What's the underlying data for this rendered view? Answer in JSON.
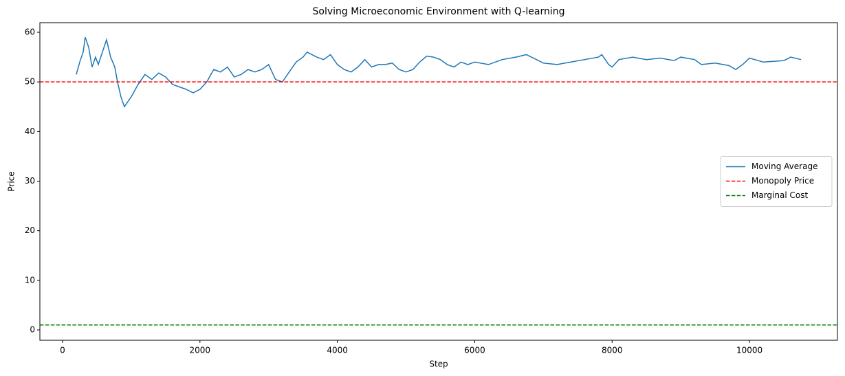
{
  "chart_data": {
    "type": "line",
    "title": "Solving Microeconomic Environment with Q-learning",
    "x_label": "Step",
    "y_label": "Price",
    "x": [
      200,
      250,
      300,
      330,
      380,
      430,
      480,
      520,
      580,
      640,
      700,
      760,
      800,
      850,
      900,
      950,
      1000,
      1100,
      1200,
      1300,
      1400,
      1500,
      1600,
      1700,
      1800,
      1900,
      2000,
      2100,
      2200,
      2300,
      2400,
      2500,
      2600,
      2700,
      2800,
      2900,
      3000,
      3100,
      3200,
      3300,
      3400,
      3500,
      3560,
      3700,
      3800,
      3900,
      4000,
      4100,
      4200,
      4300,
      4400,
      4500,
      4600,
      4700,
      4800,
      4900,
      5000,
      5100,
      5200,
      5300,
      5400,
      5500,
      5600,
      5700,
      5800,
      5900,
      6000,
      6200,
      6400,
      6600,
      6750,
      6900,
      7000,
      7200,
      7400,
      7600,
      7800,
      7850,
      7950,
      8000,
      8100,
      8300,
      8500,
      8700,
      8900,
      9000,
      9200,
      9300,
      9500,
      9700,
      9800,
      9900,
      10000,
      10200,
      10400,
      10500,
      10600,
      10750
    ],
    "series": [
      {
        "name": "Moving Average",
        "color": "#1f77b4",
        "values": [
          51.5,
          54,
          56,
          59,
          57,
          53,
          55,
          53.5,
          56,
          58.5,
          55,
          53,
          50,
          47,
          45,
          46,
          47,
          49.5,
          51.5,
          50.5,
          51.8,
          51,
          49.5,
          49,
          48.5,
          47.8,
          48.5,
          50,
          52.5,
          52,
          53,
          51,
          51.5,
          52.5,
          52,
          52.5,
          53.5,
          50.5,
          50,
          52,
          54,
          55,
          56,
          55,
          54.5,
          55.5,
          53.5,
          52.5,
          52,
          53,
          54.5,
          53,
          53.5,
          53.5,
          53.8,
          52.5,
          52,
          52.5,
          54,
          55.2,
          55,
          54.5,
          53.5,
          53,
          54,
          53.5,
          54,
          53.5,
          54.5,
          55,
          55.5,
          54.5,
          53.8,
          53.5,
          54,
          54.5,
          55,
          55.5,
          53.5,
          53,
          54.5,
          55,
          54.5,
          54.8,
          54.3,
          55,
          54.5,
          53.5,
          53.8,
          53.3,
          52.5,
          53.5,
          54.8,
          54,
          54.2,
          54.3,
          55,
          54.5
        ]
      }
    ],
    "hlines": [
      {
        "name": "Monopoly Price",
        "value": 50,
        "color": "#ff0000",
        "dash": "dashed"
      },
      {
        "name": "Marginal Cost",
        "value": 1,
        "color": "#008000",
        "dash": "dashed"
      }
    ],
    "xlim": [
      -330,
      11280
    ],
    "ylim": [
      -2.08,
      61.94
    ],
    "xticks": [
      0,
      2000,
      4000,
      6000,
      8000,
      10000
    ],
    "yticks": [
      0,
      10,
      20,
      30,
      40,
      50,
      60
    ],
    "legend": "center right",
    "grid": false
  }
}
